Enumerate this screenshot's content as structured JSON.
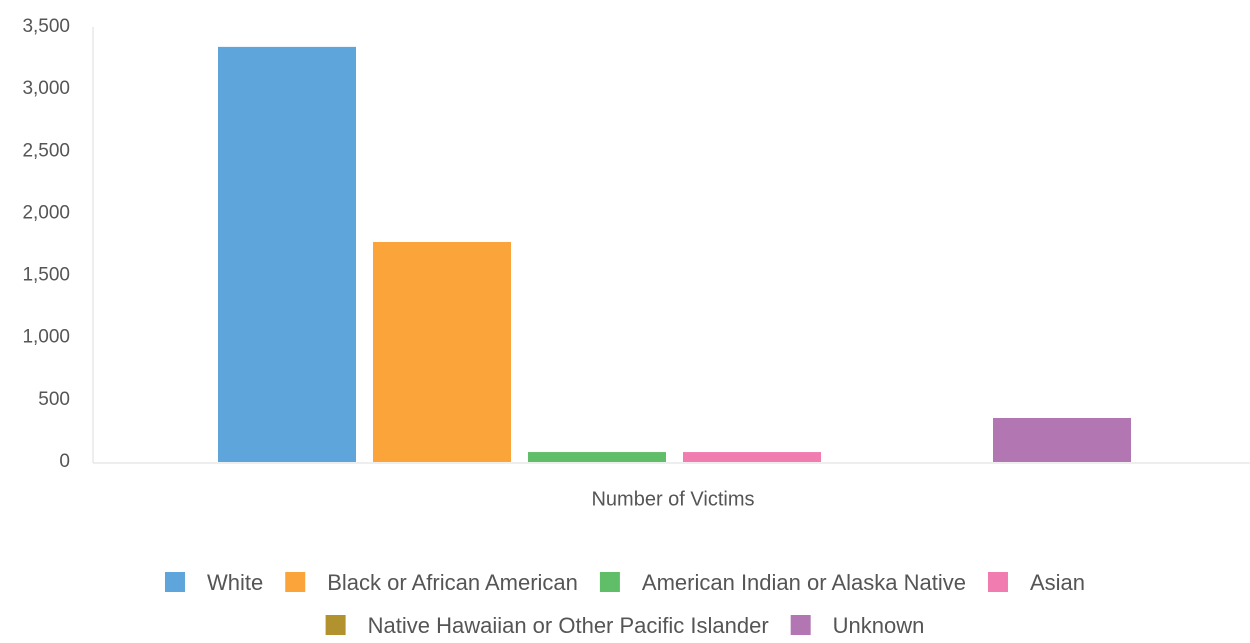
{
  "chart_data": {
    "type": "bar",
    "x_label": "Number of Victims",
    "categories": [
      "Number of Victims"
    ],
    "series": [
      {
        "name": "White",
        "color": "#5da5da",
        "values": [
          3340
        ]
      },
      {
        "name": "Black or African American",
        "color": "#faa43a",
        "values": [
          1770
        ]
      },
      {
        "name": "American Indian or Alaska Native",
        "color": "#60bd68",
        "values": [
          80
        ]
      },
      {
        "name": "Asian",
        "color": "#f17cb0",
        "values": [
          80
        ]
      },
      {
        "name": "Native Hawaiian or Other Pacific Islander",
        "color": "#b2912f",
        "values": [
          0
        ]
      },
      {
        "name": "Unknown",
        "color": "#b276b2",
        "values": [
          354
        ]
      }
    ],
    "ylim": [
      0,
      3500
    ],
    "yticks": [
      0,
      {
        "value": 500,
        "label": "500"
      },
      {
        "value": 1000,
        "label": "1,000"
      },
      {
        "value": 1500,
        "label": "1,500"
      },
      {
        "value": 2000,
        "label": "2,000"
      },
      {
        "value": 2500,
        "label": "2,500"
      },
      {
        "value": 3000,
        "label": "3,000"
      },
      {
        "value": 3500,
        "label": "3,500"
      }
    ],
    "grid": false,
    "legend": "bottom"
  }
}
